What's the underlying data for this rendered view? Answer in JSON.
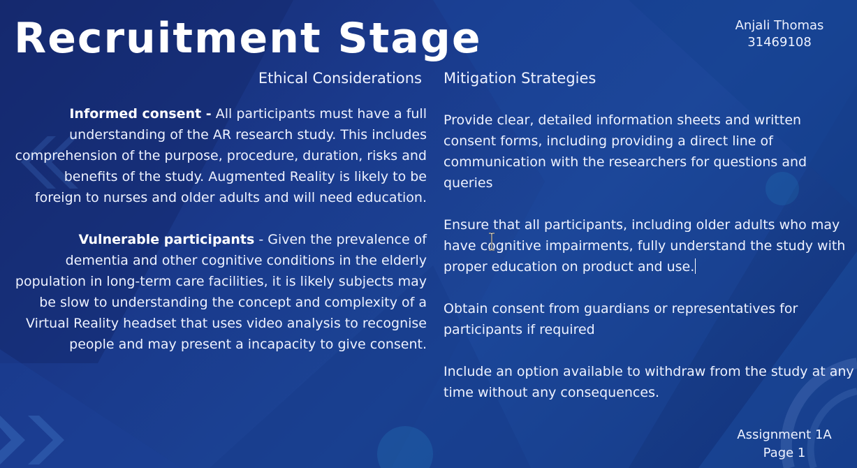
{
  "slide": {
    "title": "Recruitment Stage",
    "author_name": "Anjali Thomas",
    "author_id": "31469108",
    "column_left_heading": "Ethical Considerations",
    "column_right_heading": "Mitigation Strategies"
  },
  "considerations": [
    {
      "term": "Informed consent -",
      "text": " All participants must have a full understanding of the AR research study. This includes comprehension of the purpose, procedure, duration, risks and benefits of the study. Augmented Reality is likely to be foreign to nurses and older adults and will need education."
    },
    {
      "term": "Vulnerable participants",
      "text": " - Given the prevalence of dementia and other cognitive conditions in the elderly population in long-term care facilities, it is likely subjects may be slow to understanding the concept and complexity of a Virtual Reality headset that uses video analysis to recognise people and may present a incapacity to give consent."
    }
  ],
  "strategies": [
    "Provide clear, detailed information sheets and written consent forms, including providing a direct line of communication with the researchers for questions and queries",
    "Ensure that all participants, including older adults who may have cognitive impairments, fully understand the study with proper education on product and use.",
    "Obtain consent from guardians or representatives for participants if required",
    "Include an option available to withdraw from the study at any time without any consequences."
  ],
  "footer": {
    "assignment": "Assignment 1A",
    "page": "Page 1"
  },
  "colors": {
    "background_dark": "#17286e",
    "background_mid": "#1c4596",
    "text": "#ffffff"
  }
}
